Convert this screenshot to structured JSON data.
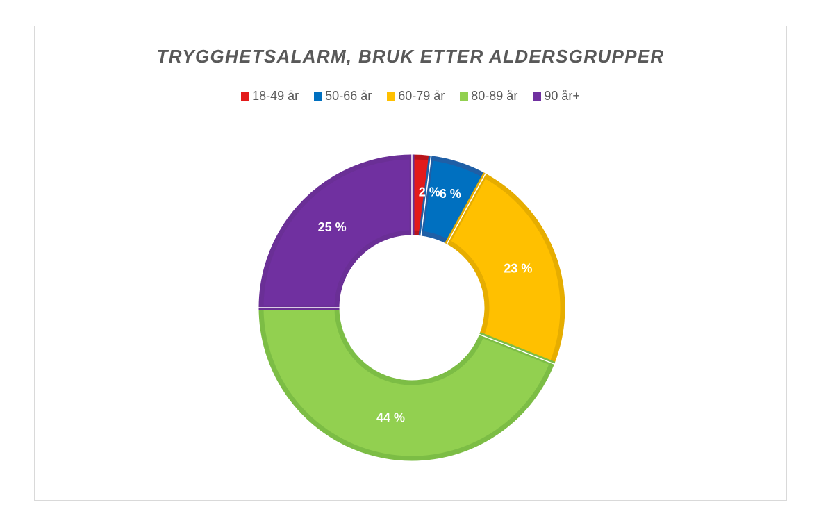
{
  "chart_data": {
    "type": "pie",
    "subtype": "doughnut",
    "title": "TRYGGHETSALARM, BRUK ETTER ALDERSGRUPPER",
    "legend_position": "top",
    "categories": [
      "18-49 år",
      "50-66 år",
      "60-79 år",
      "80-89 år",
      "90 år+"
    ],
    "values": [
      2,
      6,
      23,
      44,
      25
    ],
    "data_labels": [
      "2 %",
      "6 %",
      "23 %",
      "44 %",
      "25 %"
    ],
    "colors": [
      "#e31b1b",
      "#0070c0",
      "#ffc000",
      "#92d050",
      "#7030a0"
    ],
    "border_colors": [
      "#b8141a",
      "#1f5fa6",
      "#e6ad00",
      "#7cbd45",
      "#6a2f96"
    ]
  }
}
